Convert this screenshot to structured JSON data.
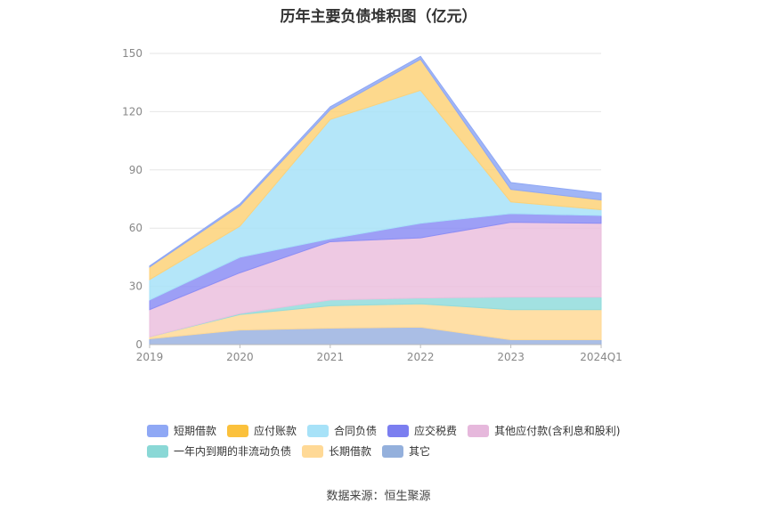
{
  "chart_data": {
    "type": "area",
    "stacked": true,
    "title": "历年主要负债堆积图（亿元）",
    "categories": [
      "2019",
      "2020",
      "2021",
      "2022",
      "2023",
      "2024Q1"
    ],
    "ylim": [
      0,
      150
    ],
    "yticks": [
      0,
      30,
      60,
      90,
      120,
      150
    ],
    "grid": true,
    "legend_position": "bottom",
    "series": [
      {
        "name": "其它",
        "color": "#9bb3e0",
        "values": [
          3,
          7.5,
          8.5,
          9,
          2.5,
          2.5
        ]
      },
      {
        "name": "长期借款",
        "color": "#ffd996",
        "values": [
          1,
          8,
          11.5,
          12,
          15.5,
          15.5
        ]
      },
      {
        "name": "一年内到期的非流动负债",
        "color": "#92dcdc",
        "values": [
          0,
          0.5,
          3,
          3,
          6.5,
          6.5
        ]
      },
      {
        "name": "其他应付款(含利息和股利)",
        "color": "#ebc0de",
        "values": [
          14,
          21,
          30,
          31,
          38.5,
          38
        ]
      },
      {
        "name": "应交税费",
        "color": "#8c8ef5",
        "values": [
          5,
          8,
          1.5,
          7.5,
          4.5,
          4
        ]
      },
      {
        "name": "合同负债",
        "color": "#a7e2f8",
        "values": [
          10.5,
          16,
          61.5,
          68.5,
          6,
          3
        ]
      },
      {
        "name": "应付账款",
        "color": "#fdd279",
        "values": [
          6.5,
          10.5,
          5,
          16,
          6.5,
          5
        ]
      },
      {
        "name": "短期借款",
        "color": "#8fa8f5",
        "values": [
          0.5,
          1,
          1.5,
          1.5,
          3.5,
          3.5
        ]
      }
    ]
  },
  "legend": [
    {
      "label": "短期借款",
      "color": "#8fa8f5"
    },
    {
      "label": "应付账款",
      "color": "#fbc13c"
    },
    {
      "label": "合同负债",
      "color": "#a7e2f8"
    },
    {
      "label": "应交税费",
      "color": "#7b7ef0"
    },
    {
      "label": "其他应付款(含利息和股利)",
      "color": "#e6b8dc"
    },
    {
      "label": "一年内到期的非流动负债",
      "color": "#8ad8d6"
    },
    {
      "label": "长期借款",
      "color": "#ffd996"
    },
    {
      "label": "其它",
      "color": "#94b0dc"
    }
  ],
  "source": "数据来源：恒生聚源"
}
